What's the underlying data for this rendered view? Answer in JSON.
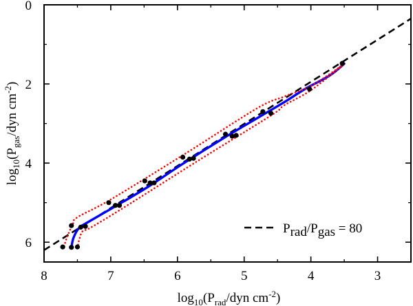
{
  "chart_data": {
    "type": "line",
    "title": "",
    "xlabel": {
      "parts": [
        {
          "t": "log",
          "s": "n"
        },
        {
          "t": "10",
          "s": "sub"
        },
        {
          "t": "(P",
          "s": "n"
        },
        {
          "t": "rad",
          "s": "sub"
        },
        {
          "t": "/dyn cm",
          "s": "n"
        },
        {
          "t": "-2",
          "s": "sup"
        },
        {
          "t": ")",
          "s": "n"
        }
      ]
    },
    "ylabel": {
      "parts": [
        {
          "t": "log",
          "s": "n"
        },
        {
          "t": "10",
          "s": "sub"
        },
        {
          "t": "(P",
          "s": "n"
        },
        {
          "t": "gas",
          "s": "sub"
        },
        {
          "t": "/dyn cm",
          "s": "n"
        },
        {
          "t": "-2",
          "s": "sup"
        },
        {
          "t": ")",
          "s": "n"
        }
      ]
    },
    "xlim": [
      8,
      2.5
    ],
    "ylim": [
      0,
      6.5
    ],
    "x_inverted": true,
    "y_inverted": true,
    "x_ticks": [
      8,
      7,
      6,
      5,
      4,
      3
    ],
    "x_tick_labels": [
      "8",
      "7",
      "6",
      "5",
      "4",
      "3"
    ],
    "y_ticks": [
      0,
      2,
      4,
      6
    ],
    "y_tick_labels": [
      "0",
      "2",
      "4",
      "6"
    ],
    "grid": false,
    "legend": {
      "placement": "bottom-right",
      "parts": [
        {
          "t": "P",
          "s": "n"
        },
        {
          "t": "rad",
          "s": "sub"
        },
        {
          "t": "/P",
          "s": "n"
        },
        {
          "t": "gas",
          "s": "sub"
        },
        {
          "t": " = 80",
          "s": "n"
        }
      ]
    },
    "series": [
      {
        "name": "Prad/Pgas = 80",
        "style": "dashed",
        "color": "#000000",
        "x": [
          8.0,
          2.5
        ],
        "y": [
          6.2,
          0.35
        ]
      },
      {
        "style": "solid",
        "color": "#0000ff",
        "x": [
          7.59,
          7.57,
          7.53,
          7.49,
          7.44,
          7.37,
          6.97,
          6.45,
          5.94,
          5.27,
          4.78,
          4.38,
          4.08,
          3.72,
          3.5
        ],
        "y": [
          6.15,
          5.95,
          5.78,
          5.67,
          5.59,
          5.52,
          5.13,
          4.61,
          4.04,
          3.33,
          2.84,
          2.44,
          2.12,
          1.79,
          1.49
        ]
      },
      {
        "style": "dotted",
        "color": "#ff0000",
        "x": [
          7.7,
          7.65,
          7.57,
          7.5,
          7.0,
          5.9,
          4.8,
          4.4,
          4.0,
          3.5
        ],
        "y": [
          6.1,
          5.85,
          5.55,
          5.37,
          4.92,
          3.78,
          2.61,
          2.32,
          2.05,
          1.5
        ]
      },
      {
        "style": "dotted",
        "color": "#ff0000",
        "x": [
          7.5,
          7.47,
          7.42,
          7.3,
          6.8,
          5.7,
          4.6,
          4.4,
          4.0,
          3.5
        ],
        "y": [
          6.15,
          5.92,
          5.72,
          5.63,
          5.12,
          3.95,
          2.8,
          2.54,
          2.16,
          1.5
        ]
      },
      {
        "style": "markers",
        "color": "#000000",
        "x": [
          7.72,
          7.59,
          7.5,
          7.59,
          7.45,
          7.38,
          7.03,
          6.93,
          6.87,
          6.49,
          6.41,
          6.35,
          5.92,
          5.82,
          5.76,
          5.28,
          5.18,
          5.12,
          4.72,
          4.6,
          4.02,
          3.53
        ],
        "y": [
          6.12,
          6.13,
          6.12,
          5.58,
          5.62,
          5.6,
          5.0,
          5.07,
          5.07,
          4.45,
          4.5,
          4.5,
          3.85,
          3.9,
          3.88,
          3.27,
          3.32,
          3.3,
          2.7,
          2.74,
          2.13,
          1.48
        ]
      }
    ]
  }
}
